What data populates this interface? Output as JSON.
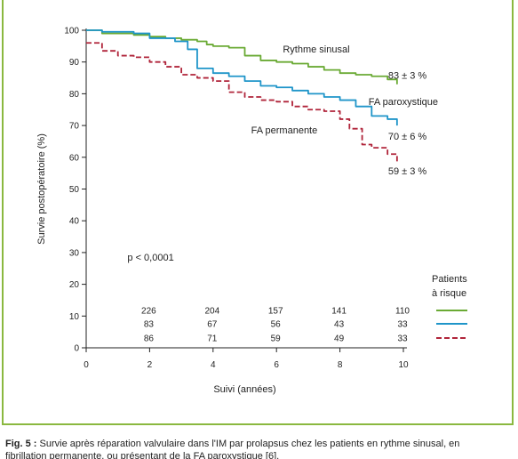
{
  "chart_data": {
    "type": "line",
    "xlabel": "Suivi (années)",
    "ylabel": "Survie postopératoire (%)",
    "xlim": [
      0,
      10
    ],
    "ylim": [
      0,
      100
    ],
    "xticks": [
      0,
      2,
      4,
      6,
      8,
      10
    ],
    "yticks": [
      0,
      10,
      20,
      30,
      40,
      50,
      60,
      70,
      80,
      90,
      100
    ],
    "grid": false,
    "series": [
      {
        "name": "Rythme sinusal",
        "color": "#6aaa34",
        "style": "solid",
        "end_label": "83 ± 3 %",
        "x": [
          0,
          0.5,
          1.5,
          2,
          2.5,
          3,
          3.5,
          3.8,
          4,
          4.5,
          5,
          5.5,
          6,
          6.5,
          7,
          7.5,
          8,
          8.5,
          9,
          9.5,
          9.8
        ],
        "y": [
          100,
          99,
          98.5,
          98,
          97.5,
          97,
          96.5,
          95.5,
          95,
          94.5,
          92,
          90.5,
          90,
          89.5,
          88.5,
          87.5,
          86.5,
          86,
          85.5,
          84.5,
          83
        ]
      },
      {
        "name": "FA paroxystique",
        "color": "#1f95c9",
        "style": "solid",
        "end_label": "70 ± 6 %",
        "x": [
          0,
          0.5,
          1.5,
          2,
          2.8,
          3.2,
          3.5,
          4,
          4.5,
          5,
          5.5,
          6,
          6.5,
          7,
          7.5,
          8,
          8.5,
          9,
          9.5,
          9.8
        ],
        "y": [
          100,
          99.5,
          99,
          97.5,
          96.5,
          94,
          88,
          86.5,
          85.5,
          84,
          82.5,
          82,
          81,
          80,
          79,
          78,
          76,
          73,
          72,
          70
        ]
      },
      {
        "name": "FA permanente",
        "color": "#b0243a",
        "style": "dashed",
        "end_label": "59 ± 3 %",
        "x": [
          0,
          0.5,
          1,
          1.5,
          2,
          2.5,
          3,
          3.5,
          4,
          4.5,
          5,
          5.5,
          6,
          6.5,
          7,
          7.5,
          8,
          8.3,
          8.7,
          9,
          9.5,
          9.8
        ],
        "y": [
          96,
          93.5,
          92,
          91.5,
          90,
          88.5,
          86,
          85,
          84,
          80.5,
          79,
          78,
          77.5,
          76,
          75,
          74.5,
          72,
          69,
          64,
          63,
          61,
          58.5
        ]
      }
    ],
    "annotations": [
      {
        "text": "Rythme sinusal",
        "x": 6.2,
        "y": 93
      },
      {
        "text": "FA paroxystique",
        "x": 8.9,
        "y": 76.5
      },
      {
        "text": "FA permanente",
        "x": 5.2,
        "y": 67.5
      },
      {
        "text": "p < 0,0001",
        "x": 1.3,
        "y": 27.5
      }
    ],
    "risk_table": {
      "title": [
        "Patients",
        "à risque"
      ],
      "times": [
        2,
        4,
        6,
        8,
        10
      ],
      "rows": [
        {
          "series": "Rythme sinusal",
          "values": [
            226,
            204,
            157,
            141,
            110
          ]
        },
        {
          "series": "FA paroxystique",
          "values": [
            83,
            67,
            56,
            43,
            33
          ]
        },
        {
          "series": "FA permanente",
          "values": [
            86,
            71,
            59,
            49,
            33
          ]
        }
      ]
    }
  },
  "caption": {
    "label": "Fig. 5 :",
    "text": "Survie après réparation valvulaire dans l'IM par prolapsus chez les patients en rythme sinusal, en",
    "line2": "fibrillation permanente, ou présentant de la FA paroxystique [6]."
  }
}
